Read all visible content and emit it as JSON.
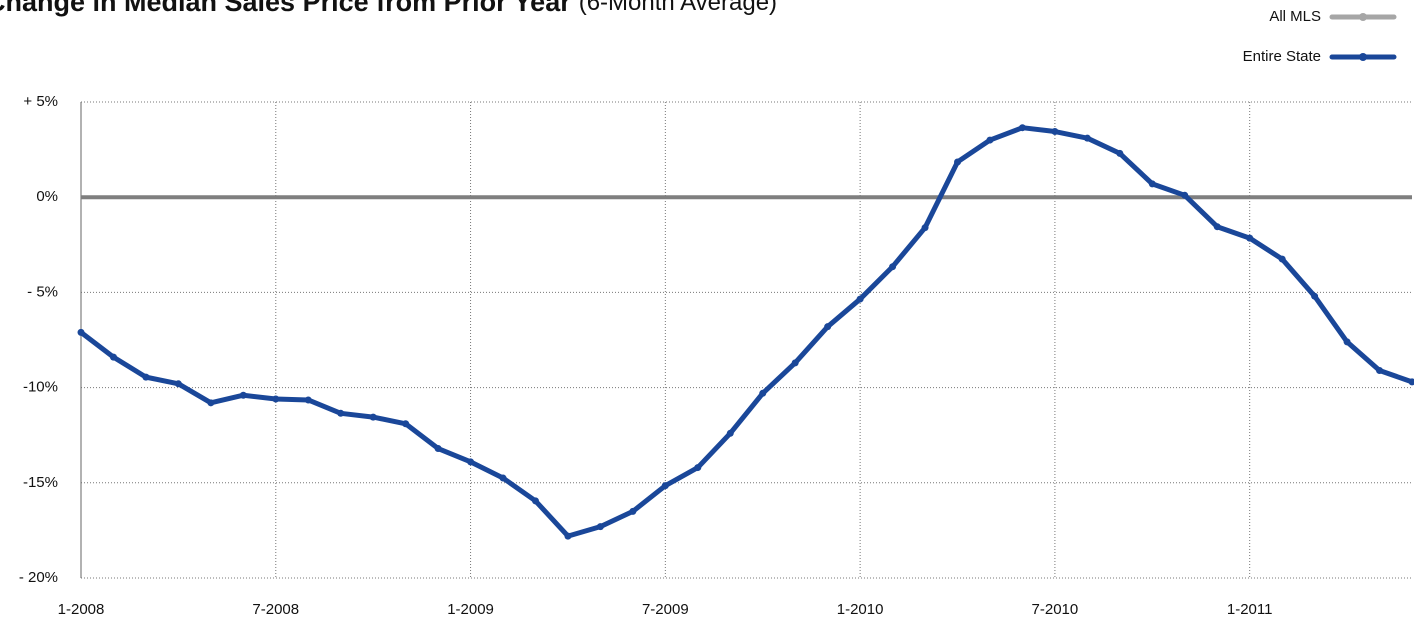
{
  "chart_data": {
    "type": "line",
    "title": "Change in Median Sales Price from Prior Year",
    "subtitle": "(6-Month Average)",
    "categories": [
      "1-2008",
      null,
      null,
      null,
      null,
      null,
      "7-2008",
      null,
      null,
      null,
      null,
      null,
      "1-2009",
      null,
      null,
      null,
      null,
      null,
      "7-2009",
      null,
      null,
      null,
      null,
      null,
      "1-2010",
      null,
      null,
      null,
      null,
      null,
      "7-2010",
      null,
      null,
      null,
      null,
      null,
      "1-2011",
      null,
      null,
      null,
      null,
      null
    ],
    "series": [
      {
        "name": "All MLS",
        "color": "#a6a6a6",
        "values": [
          null,
          null,
          null,
          null,
          null,
          null,
          null,
          null,
          null,
          null,
          null,
          null,
          null,
          null,
          null,
          null,
          null,
          null,
          null,
          null,
          null,
          null,
          null,
          null,
          null,
          null,
          null,
          null,
          null,
          null,
          null,
          null,
          null,
          null,
          null,
          null,
          null,
          null,
          null,
          null,
          null,
          null
        ]
      },
      {
        "name": "Entire State",
        "color": "#1a4799",
        "values": [
          -7.1,
          -8.4,
          -9.45,
          -9.8,
          -10.8,
          -10.4,
          -10.6,
          -10.65,
          -11.35,
          -11.55,
          -11.9,
          -13.2,
          -13.9,
          -14.75,
          -15.95,
          -17.8,
          -17.3,
          -16.5,
          -15.15,
          -14.2,
          -12.4,
          -10.3,
          -8.7,
          -6.8,
          -5.35,
          -3.65,
          -1.6,
          1.85,
          3.0,
          3.65,
          3.45,
          3.1,
          2.3,
          0.7,
          0.1,
          -1.55,
          -2.15,
          -3.25,
          -5.2,
          -7.6,
          -9.1,
          -9.7
        ]
      }
    ],
    "ylim": [
      -20,
      5
    ],
    "yticks": [
      {
        "value": 5,
        "label": "+ 5%"
      },
      {
        "value": 0,
        "label": "0%"
      },
      {
        "value": -5,
        "label": "- 5%"
      },
      {
        "value": -10,
        "label": "-10%"
      },
      {
        "value": -15,
        "label": "-15%"
      },
      {
        "value": -20,
        "label": "- 20%"
      }
    ],
    "grid": true,
    "zero_line": true,
    "legend": "top-right"
  }
}
